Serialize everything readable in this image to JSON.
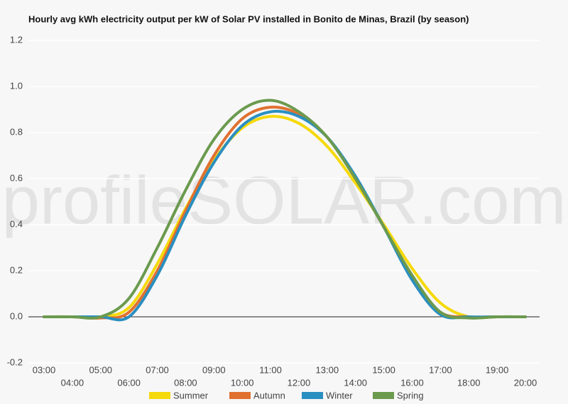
{
  "chart_data": {
    "type": "line",
    "title": "Hourly avg kWh electricity output per kW of Solar PV installed in Bonito de Minas, Brazil (by season)",
    "watermark": "profileSOLAR.com",
    "categories": [
      "03:00",
      "04:00",
      "05:00",
      "06:00",
      "07:00",
      "08:00",
      "09:00",
      "10:00",
      "11:00",
      "12:00",
      "13:00",
      "14:00",
      "15:00",
      "16:00",
      "17:00",
      "18:00",
      "19:00",
      "20:00"
    ],
    "series": [
      {
        "name": "Summer",
        "color": "#f5d90a",
        "values": [
          0,
          0,
          0,
          0.04,
          0.23,
          0.47,
          0.68,
          0.82,
          0.87,
          0.84,
          0.74,
          0.58,
          0.4,
          0.21,
          0.06,
          0,
          0,
          0
        ]
      },
      {
        "name": "Autumn",
        "color": "#e07030",
        "values": [
          0,
          0,
          -0.005,
          0.02,
          0.2,
          0.46,
          0.7,
          0.86,
          0.91,
          0.88,
          0.78,
          0.6,
          0.39,
          0.17,
          0.02,
          0,
          0,
          0
        ]
      },
      {
        "name": "Winter",
        "color": "#2a8fc0",
        "values": [
          0,
          0,
          0,
          0,
          0.18,
          0.44,
          0.67,
          0.83,
          0.89,
          0.87,
          0.78,
          0.61,
          0.39,
          0.16,
          0.01,
          0,
          0,
          0
        ]
      },
      {
        "name": "Spring",
        "color": "#6b9a4e",
        "values": [
          0,
          0,
          0,
          0.08,
          0.3,
          0.55,
          0.77,
          0.9,
          0.94,
          0.89,
          0.78,
          0.6,
          0.39,
          0.18,
          0.02,
          -0.005,
          0,
          0
        ]
      }
    ],
    "ylim": [
      -0.2,
      1.2
    ],
    "yticks": [
      -0.2,
      {
        "value": 0,
        "label": "0.0"
      },
      0.2,
      0.4,
      0.6,
      0.8,
      {
        "value": 1,
        "label": "1.0"
      },
      1.2
    ],
    "grid": true,
    "legend": "bottom"
  }
}
